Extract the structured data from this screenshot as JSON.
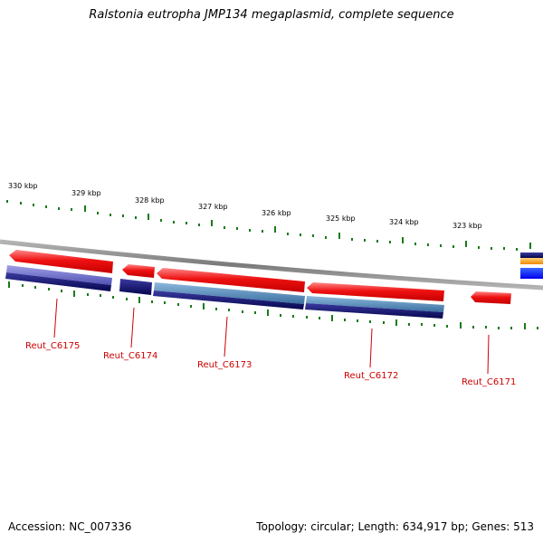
{
  "title": "Ralstonia eutropha JMP134 megaplasmid, complete sequence",
  "footer": {
    "accession": "Accession: NC_007336",
    "summary": "Topology: circular; Length: 634,917 bp; Genes: 513"
  },
  "scale_labels": [
    "330 kbp",
    "329 kbp",
    "328 kbp",
    "327 kbp",
    "326 kbp",
    "325 kbp",
    "324 kbp",
    "323 kbp"
  ],
  "genes": [
    "Reut_C6175",
    "Reut_C6174",
    "Reut_C6173",
    "Reut_C6172",
    "Reut_C6171"
  ],
  "colors": {
    "forward_gene": "#ee1111",
    "reverse_navy": "#0a0a6e",
    "reverse_purple": "#6e6ec8",
    "reverse_steel": "#4a82b4",
    "backbone": "#888888",
    "ticks": "#1a7a1a",
    "label_text": "#cc0000"
  }
}
